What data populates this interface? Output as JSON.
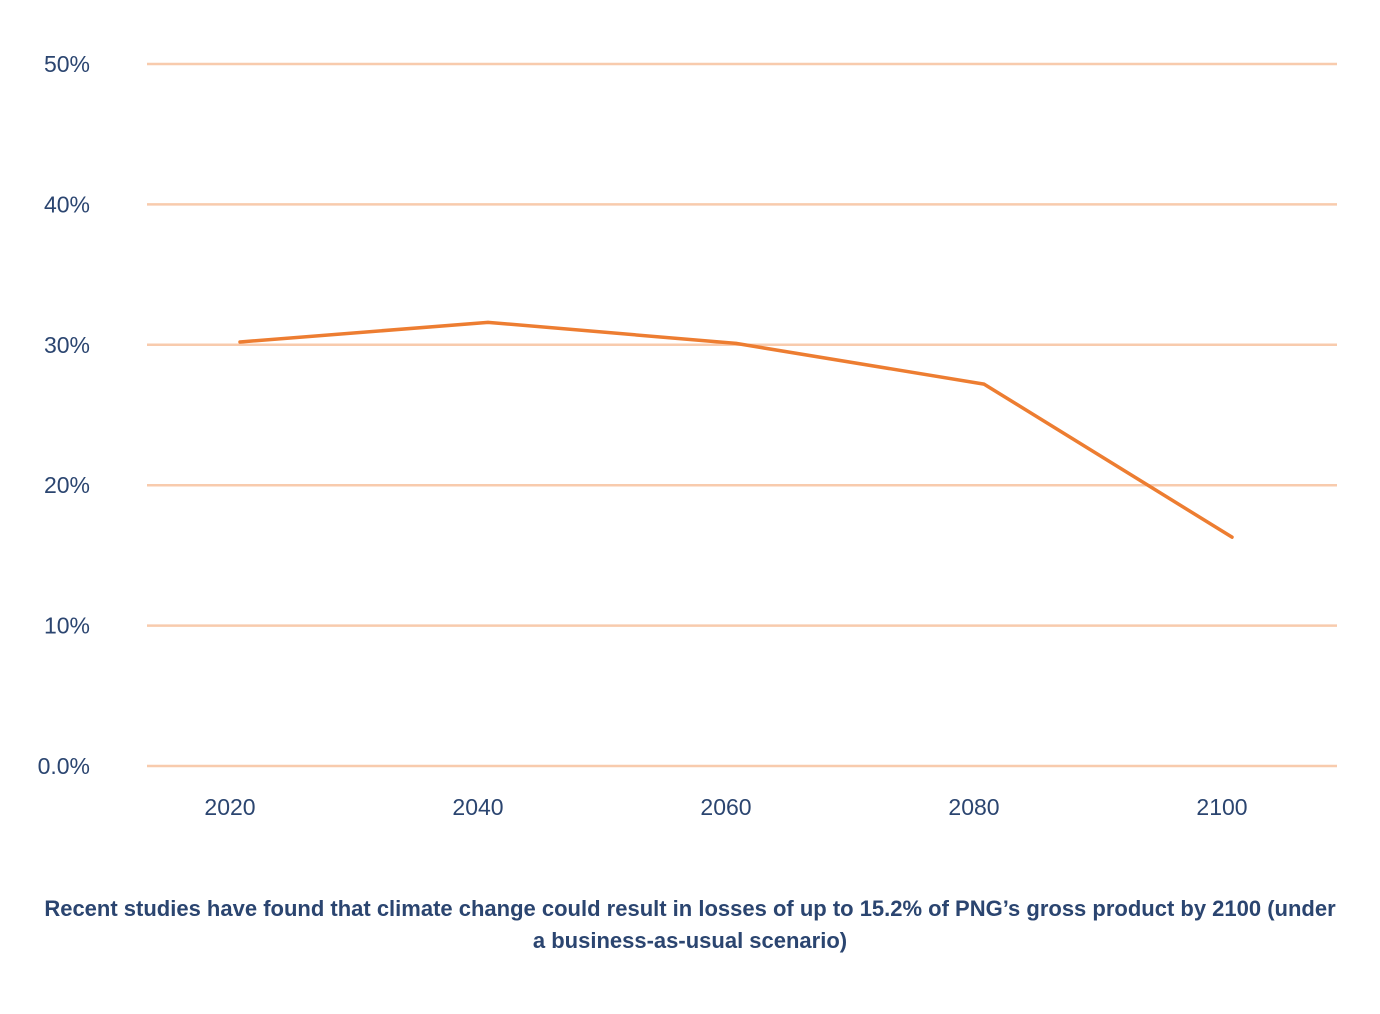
{
  "chart_data": {
    "type": "line",
    "x": [
      "2020",
      "2040",
      "2060",
      "2080",
      "2100"
    ],
    "series": [
      {
        "values": [
          30.2,
          31.6,
          30.1,
          27.2,
          16.3
        ]
      }
    ],
    "ylim": [
      0,
      50
    ],
    "yticks": [
      {
        "value": 0,
        "label": "0.0%"
      },
      {
        "value": 10,
        "label": "10%"
      },
      {
        "value": 20,
        "label": "20%"
      },
      {
        "value": 30,
        "label": "30%"
      },
      {
        "value": 40,
        "label": "40%"
      },
      {
        "value": 50,
        "label": "50%"
      }
    ],
    "grid": true,
    "legend": "none",
    "colors": {
      "line": "#ed7d31",
      "grid": "#f8cbad",
      "text": "#2b4570"
    }
  },
  "caption": "Recent studies have found that climate change could result in losses of up to 15.2% of PNG’s gross product by 2100 (under a business-as-usual scenario)"
}
